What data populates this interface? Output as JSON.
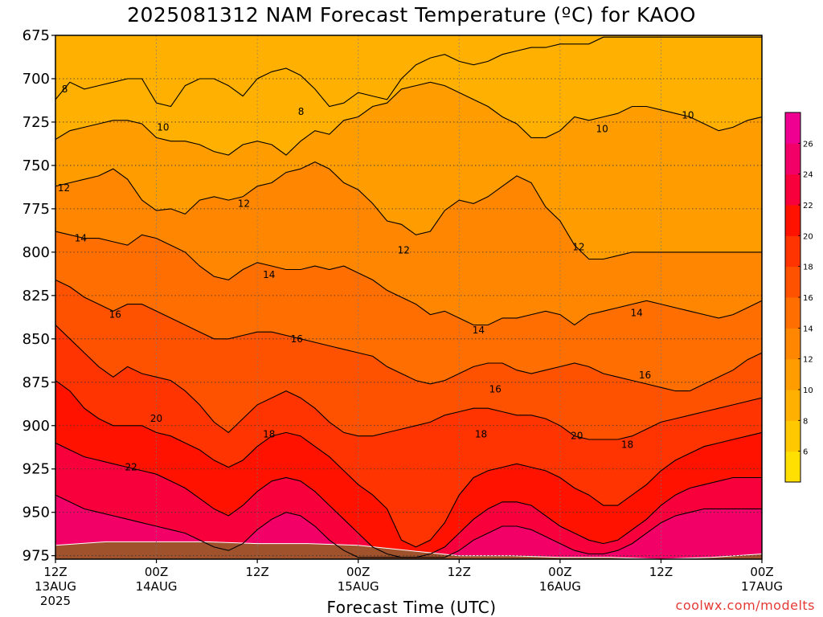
{
  "title": "2025081312 NAM Forecast Temperature (ºC) for KAOO",
  "credit": "coolwx.com/modelts",
  "colors": {
    "frame": "#000000",
    "ground": "#a0522d",
    "grid": "#555555"
  },
  "chart_data": {
    "type": "heatmap",
    "title": "2025081312 NAM Forecast Temperature (ºC) for KAOO",
    "xlabel": "Forecast Time (UTC)",
    "ylabel": "",
    "x_range_hours": [
      0,
      84
    ],
    "y_range_hpa": [
      675,
      977
    ],
    "y_ticks": [
      675,
      700,
      725,
      750,
      775,
      800,
      825,
      850,
      875,
      900,
      925,
      950,
      975
    ],
    "y_inverted": true,
    "x_ticks": [
      {
        "hour": 0,
        "line1": "12Z",
        "line2": "13AUG",
        "line3": "2025"
      },
      {
        "hour": 12,
        "line1": "00Z",
        "line2": "14AUG",
        "line3": ""
      },
      {
        "hour": 24,
        "line1": "12Z",
        "line2": "",
        "line3": ""
      },
      {
        "hour": 36,
        "line1": "00Z",
        "line2": "15AUG",
        "line3": ""
      },
      {
        "hour": 48,
        "line1": "12Z",
        "line2": "",
        "line3": ""
      },
      {
        "hour": 60,
        "line1": "00Z",
        "line2": "16AUG",
        "line3": ""
      },
      {
        "hour": 72,
        "line1": "12Z",
        "line2": "",
        "line3": ""
      },
      {
        "hour": 84,
        "line1": "00Z",
        "line2": "17AUG",
        "line3": ""
      }
    ],
    "grid": true,
    "colorbar": {
      "placement": "right",
      "levels": [
        4,
        6,
        8,
        10,
        12,
        14,
        16,
        18,
        20,
        22,
        24,
        26,
        28
      ],
      "labels": [
        6,
        8,
        10,
        12,
        14,
        16,
        18,
        20,
        22,
        24,
        26
      ],
      "colors": [
        "#ffe000",
        "#ffc800",
        "#ffb000",
        "#ff9c00",
        "#ff8600",
        "#ff6e00",
        "#ff5200",
        "#ff3400",
        "#ff1200",
        "#f8003c",
        "#f20068",
        "#f00090"
      ]
    },
    "contours": [
      {
        "level": 8,
        "p": [
          712,
          702,
          706,
          704,
          702,
          700,
          700,
          714,
          716,
          704,
          700,
          700,
          704,
          710,
          700,
          696,
          694,
          698,
          706,
          716,
          714,
          708,
          710,
          712,
          700,
          692,
          688,
          686,
          690,
          692,
          690,
          686,
          684,
          682,
          682,
          680,
          680,
          680,
          676,
          676,
          676,
          676,
          676,
          676,
          676,
          676,
          676,
          676,
          676,
          676
        ]
      },
      {
        "level": 10,
        "p": [
          735,
          730,
          728,
          726,
          724,
          724,
          726,
          734,
          736,
          736,
          738,
          742,
          744,
          738,
          736,
          738,
          744,
          736,
          730,
          732,
          724,
          722,
          716,
          714,
          706,
          704,
          702,
          704,
          708,
          712,
          716,
          722,
          726,
          734,
          734,
          730,
          722,
          724,
          722,
          720,
          716,
          716,
          718,
          720,
          722,
          726,
          730,
          728,
          724,
          722
        ]
      },
      {
        "level": 12,
        "p": [
          762,
          760,
          758,
          756,
          752,
          758,
          770,
          776,
          775,
          778,
          770,
          768,
          770,
          768,
          762,
          760,
          754,
          752,
          748,
          752,
          760,
          764,
          772,
          782,
          784,
          790,
          788,
          776,
          770,
          772,
          768,
          762,
          756,
          760,
          774,
          782,
          796,
          804,
          804,
          802,
          800,
          800,
          800,
          800,
          800,
          800,
          800,
          800,
          800,
          800
        ]
      },
      {
        "level": 14,
        "p": [
          788,
          790,
          792,
          792,
          794,
          796,
          790,
          792,
          796,
          800,
          808,
          814,
          816,
          810,
          806,
          808,
          810,
          810,
          808,
          810,
          808,
          812,
          816,
          822,
          826,
          830,
          836,
          834,
          838,
          842,
          842,
          838,
          838,
          836,
          834,
          836,
          842,
          836,
          834,
          832,
          830,
          828,
          830,
          832,
          834,
          836,
          838,
          836,
          832,
          828
        ]
      },
      {
        "level": 16,
        "p": [
          816,
          820,
          826,
          830,
          834,
          830,
          830,
          834,
          838,
          842,
          846,
          850,
          850,
          848,
          846,
          846,
          848,
          850,
          852,
          854,
          856,
          858,
          860,
          866,
          870,
          874,
          876,
          874,
          870,
          866,
          864,
          864,
          868,
          870,
          868,
          866,
          864,
          866,
          870,
          872,
          874,
          876,
          878,
          880,
          880,
          876,
          872,
          868,
          862,
          858
        ]
      },
      {
        "level": 18,
        "p": [
          842,
          850,
          858,
          866,
          872,
          866,
          870,
          872,
          874,
          880,
          888,
          898,
          904,
          896,
          888,
          884,
          880,
          884,
          890,
          898,
          904,
          906,
          906,
          904,
          902,
          900,
          898,
          894,
          892,
          890,
          890,
          892,
          894,
          894,
          896,
          900,
          906,
          908,
          908,
          908,
          906,
          902,
          898,
          896,
          894,
          892,
          890,
          888,
          886,
          884
        ]
      },
      {
        "level": 20,
        "p": [
          874,
          880,
          890,
          896,
          900,
          900,
          900,
          904,
          906,
          910,
          914,
          920,
          924,
          920,
          912,
          906,
          904,
          906,
          912,
          918,
          926,
          934,
          940,
          948,
          966,
          970,
          966,
          956,
          940,
          930,
          926,
          924,
          922,
          924,
          926,
          930,
          936,
          940,
          946,
          946,
          940,
          934,
          926,
          920,
          916,
          912,
          910,
          908,
          906,
          904
        ]
      },
      {
        "level": 22,
        "p": [
          910,
          914,
          918,
          920,
          922,
          924,
          926,
          928,
          932,
          936,
          942,
          948,
          952,
          946,
          938,
          932,
          930,
          932,
          938,
          946,
          954,
          962,
          970,
          974,
          976,
          976,
          974,
          970,
          962,
          954,
          948,
          944,
          944,
          946,
          952,
          958,
          962,
          966,
          968,
          966,
          960,
          954,
          946,
          940,
          936,
          934,
          932,
          930,
          930,
          930
        ]
      },
      {
        "level": 24,
        "p": [
          940,
          944,
          948,
          950,
          952,
          954,
          956,
          958,
          960,
          962,
          966,
          970,
          972,
          968,
          960,
          954,
          950,
          952,
          958,
          966,
          972,
          976,
          976,
          976,
          976,
          976,
          976,
          976,
          972,
          966,
          962,
          958,
          958,
          960,
          964,
          968,
          972,
          974,
          974,
          972,
          968,
          962,
          956,
          952,
          950,
          948,
          948,
          948,
          948,
          948
        ]
      }
    ],
    "contour_labels": [
      {
        "text": "8",
        "hour": 1.1,
        "p": 706
      },
      {
        "text": "8",
        "hour": 29.2,
        "p": 719
      },
      {
        "text": "10",
        "hour": 12.8,
        "p": 728
      },
      {
        "text": "10",
        "hour": 65.0,
        "p": 729
      },
      {
        "text": "10",
        "hour": 75.2,
        "p": 721
      },
      {
        "text": "12",
        "hour": 1.0,
        "p": 763
      },
      {
        "text": "12",
        "hour": 22.4,
        "p": 772
      },
      {
        "text": "12",
        "hour": 41.4,
        "p": 799
      },
      {
        "text": "12",
        "hour": 62.2,
        "p": 797
      },
      {
        "text": "14",
        "hour": 3.0,
        "p": 792
      },
      {
        "text": "14",
        "hour": 25.4,
        "p": 813
      },
      {
        "text": "14",
        "hour": 50.3,
        "p": 845
      },
      {
        "text": "14",
        "hour": 69.1,
        "p": 835
      },
      {
        "text": "16",
        "hour": 7.1,
        "p": 836
      },
      {
        "text": "16",
        "hour": 28.7,
        "p": 850
      },
      {
        "text": "16",
        "hour": 52.3,
        "p": 879
      },
      {
        "text": "16",
        "hour": 70.1,
        "p": 871
      },
      {
        "text": "18",
        "hour": 25.4,
        "p": 905
      },
      {
        "text": "18",
        "hour": 50.6,
        "p": 905
      },
      {
        "text": "18",
        "hour": 68.0,
        "p": 911
      },
      {
        "text": "20",
        "hour": 12.0,
        "p": 896
      },
      {
        "text": "20",
        "hour": 62.0,
        "p": 906
      },
      {
        "text": "22",
        "hour": 9.0,
        "p": 924
      }
    ],
    "ground": {
      "hours": [
        0,
        6,
        12,
        18,
        24,
        30,
        36,
        42,
        48,
        54,
        60,
        66,
        72,
        78,
        84
      ],
      "p": [
        969,
        967,
        967,
        967,
        968,
        968,
        969,
        972,
        975,
        975,
        976,
        976,
        977,
        976,
        974
      ]
    }
  }
}
